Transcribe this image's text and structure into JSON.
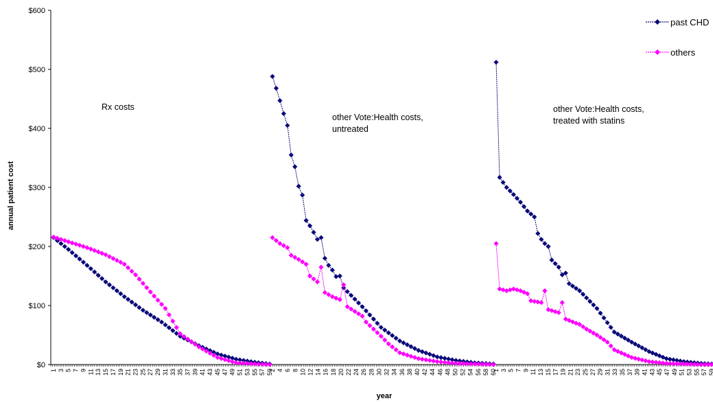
{
  "chart_data": {
    "type": "line",
    "xlabel": "year",
    "ylabel": "annual patient cost",
    "ylim": [
      0,
      600
    ],
    "yticks": [
      "$0",
      "$100",
      "$200",
      "$300",
      "$400",
      "$500",
      "$600"
    ],
    "legend": {
      "placement": "top-right",
      "entries": [
        "past CHD",
        "others"
      ]
    },
    "colors": {
      "past CHD": "#0a0a7a",
      "others": "#ff00ff"
    },
    "panels": [
      {
        "annotation": [
          "Rx  costs"
        ],
        "years": 59,
        "xtick_labels": [
          "1",
          "3",
          "5",
          "7",
          "9",
          "11",
          "13",
          "15",
          "17",
          "19",
          "21",
          "23",
          "25",
          "27",
          "29",
          "31",
          "33",
          "35",
          "37",
          "39",
          "41",
          "43",
          "45",
          "47",
          "49",
          "51",
          "53",
          "55",
          "57",
          "59"
        ],
        "series": [
          {
            "name": "past CHD",
            "anchors": [
              [
                1,
                215
              ],
              [
                5,
                195
              ],
              [
                10,
                168
              ],
              [
                15,
                140
              ],
              [
                20,
                115
              ],
              [
                25,
                92
              ],
              [
                30,
                72
              ],
              [
                35,
                48
              ],
              [
                40,
                32
              ],
              [
                45,
                18
              ],
              [
                50,
                9
              ],
              [
                55,
                4
              ],
              [
                59,
                1
              ]
            ]
          },
          {
            "name": "others",
            "anchors": [
              [
                1,
                216
              ],
              [
                5,
                208
              ],
              [
                10,
                198
              ],
              [
                15,
                186
              ],
              [
                20,
                170
              ],
              [
                23,
                152
              ],
              [
                27,
                123
              ],
              [
                31,
                95
              ],
              [
                35,
                52
              ],
              [
                40,
                30
              ],
              [
                45,
                12
              ],
              [
                50,
                3
              ],
              [
                55,
                1
              ],
              [
                59,
                0
              ]
            ]
          }
        ]
      },
      {
        "annotation": [
          "other Vote:Health costs,",
          "untreated"
        ],
        "years": 60,
        "xtick_labels": [
          "2",
          "4",
          "6",
          "8",
          "10",
          "12",
          "14",
          "16",
          "18",
          "20",
          "22",
          "24",
          "26",
          "28",
          "30",
          "32",
          "34",
          "36",
          "38",
          "40",
          "42",
          "44",
          "46",
          "48",
          "50",
          "52",
          "54",
          "56",
          "58",
          "60"
        ],
        "series": [
          {
            "name": "past CHD",
            "anchors": [
              [
                1,
                488
              ],
              [
                2,
                468
              ],
              [
                3,
                447
              ],
              [
                4,
                425
              ],
              [
                5,
                405
              ],
              [
                6,
                355
              ],
              [
                7,
                335
              ],
              [
                8,
                302
              ],
              [
                9,
                287
              ],
              [
                10,
                244
              ],
              [
                11,
                235
              ],
              [
                12,
                224
              ],
              [
                13,
                212
              ],
              [
                14,
                215
              ],
              [
                15,
                180
              ],
              [
                16,
                168
              ],
              [
                17,
                160
              ],
              [
                18,
                149
              ],
              [
                19,
                150
              ],
              [
                20,
                130
              ],
              [
                25,
                98
              ],
              [
                30,
                63
              ],
              [
                35,
                40
              ],
              [
                40,
                24
              ],
              [
                45,
                13
              ],
              [
                50,
                7
              ],
              [
                55,
                3
              ],
              [
                60,
                1
              ]
            ]
          },
          {
            "name": "others",
            "anchors": [
              [
                1,
                215
              ],
              [
                3,
                205
              ],
              [
                5,
                198
              ],
              [
                6,
                185
              ],
              [
                8,
                178
              ],
              [
                10,
                170
              ],
              [
                11,
                150
              ],
              [
                12,
                145
              ],
              [
                13,
                140
              ],
              [
                14,
                165
              ],
              [
                15,
                122
              ],
              [
                17,
                115
              ],
              [
                19,
                110
              ],
              [
                20,
                135
              ],
              [
                21,
                98
              ],
              [
                23,
                90
              ],
              [
                25,
                82
              ],
              [
                26,
                72
              ],
              [
                28,
                60
              ],
              [
                30,
                48
              ],
              [
                32,
                35
              ],
              [
                35,
                20
              ],
              [
                40,
                10
              ],
              [
                45,
                5
              ],
              [
                50,
                2
              ],
              [
                55,
                1
              ],
              [
                60,
                0
              ]
            ]
          }
        ]
      },
      {
        "annotation": [
          "other Vote:Health costs,",
          "treated with statins"
        ],
        "years": 63,
        "xtick_labels": [
          "1",
          "3",
          "5",
          "7",
          "9",
          "11",
          "13",
          "15",
          "17",
          "19",
          "21",
          "23",
          "25",
          "27",
          "29",
          "31",
          "33",
          "35",
          "37",
          "39",
          "41",
          "43",
          "45",
          "47",
          "49",
          "51",
          "53",
          "55",
          "57",
          "59"
        ],
        "series": [
          {
            "name": "past CHD",
            "anchors": [
              [
                1,
                512
              ],
              [
                2,
                317
              ],
              [
                4,
                300
              ],
              [
                6,
                288
              ],
              [
                8,
                275
              ],
              [
                10,
                260
              ],
              [
                12,
                250
              ],
              [
                13,
                222
              ],
              [
                14,
                212
              ],
              [
                15,
                205
              ],
              [
                16,
                200
              ],
              [
                17,
                177
              ],
              [
                19,
                165
              ],
              [
                20,
                152
              ],
              [
                21,
                155
              ],
              [
                22,
                137
              ],
              [
                25,
                125
              ],
              [
                30,
                95
              ],
              [
                35,
                55
              ],
              [
                40,
                38
              ],
              [
                45,
                22
              ],
              [
                50,
                10
              ],
              [
                55,
                5
              ],
              [
                60,
                2
              ],
              [
                63,
                1
              ]
            ]
          },
          {
            "name": "others",
            "anchors": [
              [
                1,
                205
              ],
              [
                2,
                128
              ],
              [
                4,
                125
              ],
              [
                6,
                128
              ],
              [
                8,
                125
              ],
              [
                10,
                120
              ],
              [
                11,
                108
              ],
              [
                14,
                105
              ],
              [
                15,
                125
              ],
              [
                16,
                93
              ],
              [
                19,
                88
              ],
              [
                20,
                105
              ],
              [
                21,
                77
              ],
              [
                24,
                70
              ],
              [
                25,
                68
              ],
              [
                27,
                60
              ],
              [
                30,
                50
              ],
              [
                33,
                38
              ],
              [
                35,
                25
              ],
              [
                40,
                12
              ],
              [
                45,
                5
              ],
              [
                50,
                2
              ],
              [
                55,
                1
              ],
              [
                60,
                0
              ],
              [
                63,
                0
              ]
            ]
          }
        ]
      }
    ]
  }
}
